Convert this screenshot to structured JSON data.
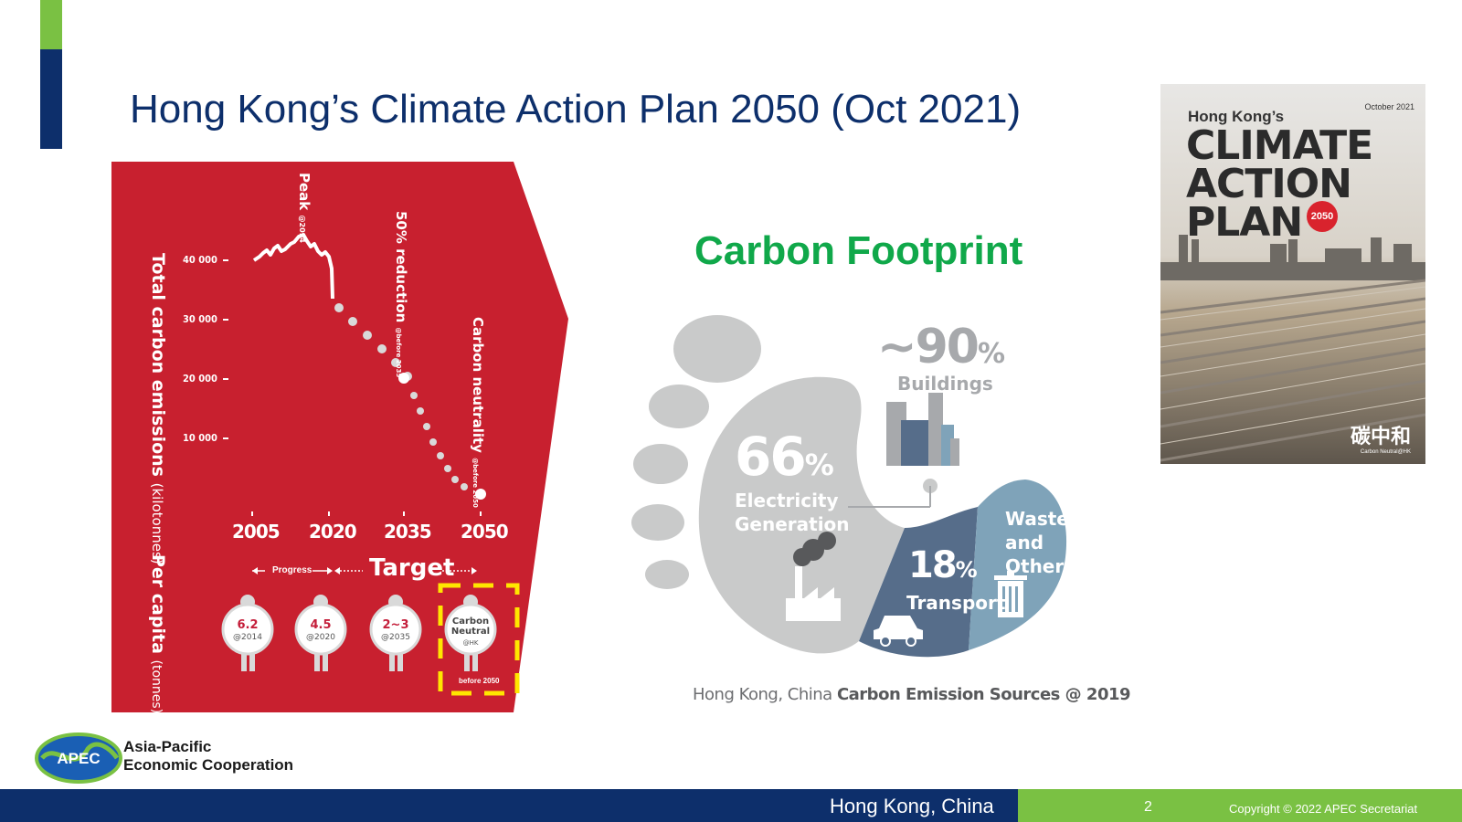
{
  "slide": {
    "title": "Hong Kong’s Climate Action Plan 2050 (Oct 2021)",
    "colors": {
      "navy": "#0d2f6b",
      "green": "#7ac143",
      "red_panel": "#c8202f",
      "footprint_green": "#10a84a"
    }
  },
  "emissions_infographic": {
    "y_title": "Total carbon emissions",
    "y_unit": "(kilotonnes)",
    "per_capita_title": "Per capita",
    "per_capita_unit": "(tonnes)",
    "y_ticks": [
      "40 000",
      "30 000",
      "20 000",
      "10 000"
    ],
    "x_ticks": [
      "2005",
      "2020",
      "2035",
      "2050"
    ],
    "milestones": [
      {
        "label": "Peak",
        "sub": "@2014"
      },
      {
        "label": "50% reduction",
        "sub": "@before 2035"
      },
      {
        "label": "Carbon neutrality",
        "sub": "@before 2050"
      }
    ],
    "progress_label": "Progress",
    "target_label": "Target",
    "per_capita": [
      {
        "value": "6.2",
        "sub": "@2014"
      },
      {
        "value": "4.5",
        "sub": "@2020"
      },
      {
        "value": "2~3",
        "sub": "@2035"
      },
      {
        "value": "Carbon Neutral",
        "sub": "@HK"
      }
    ],
    "before_2050": "before 2050"
  },
  "carbon_footprint": {
    "title": "Carbon Footprint",
    "buildings": {
      "value": "~90",
      "unit": "%",
      "label": "Buildings"
    },
    "electricity": {
      "value": "66",
      "unit": "%",
      "line1": "Electricity",
      "line2": "Generation"
    },
    "transport": {
      "value": "18",
      "unit": "%",
      "label": "Transport"
    },
    "waste": {
      "line1": "Waste",
      "line2": "and",
      "line3": "Others"
    },
    "caption_plain": "Hong Kong, China",
    "caption_bold": "Carbon Emission Sources @ 2019"
  },
  "report_cover": {
    "date": "October 2021",
    "subtitle": "Hong Kong’s",
    "line1": "CLIMATE",
    "line2": "ACTION",
    "line3": "PLAN",
    "badge": "2050",
    "chinese": "碳中和",
    "chinese_sub": "Carbon Neutral@HK"
  },
  "apec": {
    "logo_text": "APEC",
    "org_line1": "Asia-Pacific",
    "org_line2": "Economic Cooperation"
  },
  "footer": {
    "location": "Hong Kong, China",
    "page_number": "2",
    "copyright": "Copyright © 2022 APEC Secretariat"
  }
}
